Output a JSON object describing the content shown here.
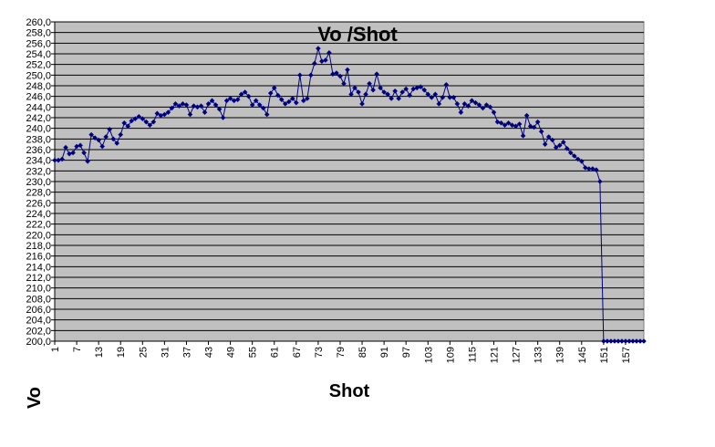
{
  "chart_data": {
    "type": "line",
    "title": "Vo /Shot",
    "xlabel": "Shot",
    "ylabel": "Vo",
    "ylim": [
      200,
      260
    ],
    "y_tick_step": 2,
    "y_tick_format": "comma-1-decimal",
    "xlim": [
      1,
      162
    ],
    "x_tick_labels": [
      "1",
      "7",
      "13",
      "19",
      "25",
      "31",
      "37",
      "43",
      "49",
      "55",
      "61",
      "67",
      "73",
      "79",
      "85",
      "91",
      "97",
      "103",
      "109",
      "115",
      "121",
      "127",
      "133",
      "139",
      "145",
      "151",
      "157"
    ],
    "grid": "horizontal",
    "plot_background": "#c0c0c0",
    "series_color": "#000080",
    "marker": "diamond",
    "series": [
      {
        "values": [
          234.0,
          234.0,
          234.2,
          236.4,
          235.2,
          235.4,
          236.6,
          236.8,
          235.4,
          233.8,
          238.8,
          238.2,
          237.8,
          236.6,
          238.4,
          239.8,
          238.0,
          237.2,
          238.8,
          241.0,
          240.4,
          241.4,
          241.8,
          242.2,
          241.8,
          241.2,
          240.6,
          241.2,
          242.8,
          242.4,
          242.6,
          243.0,
          243.8,
          244.6,
          244.2,
          244.6,
          244.4,
          242.6,
          244.2,
          244.0,
          244.2,
          243.0,
          244.6,
          245.2,
          244.4,
          243.6,
          242.0,
          245.2,
          245.6,
          245.2,
          245.4,
          246.4,
          246.8,
          246.0,
          244.4,
          245.2,
          244.4,
          243.8,
          242.6,
          246.6,
          247.6,
          246.2,
          245.4,
          244.6,
          245.0,
          245.6,
          244.8,
          250.0,
          245.2,
          245.6,
          250.0,
          252.2,
          255.0,
          252.6,
          252.8,
          254.2,
          250.2,
          250.4,
          249.8,
          248.4,
          251.0,
          246.4,
          247.6,
          246.8,
          244.6,
          246.4,
          248.4,
          247.2,
          250.2,
          247.6,
          246.8,
          246.4,
          245.6,
          247.0,
          245.6,
          246.8,
          247.4,
          246.2,
          247.4,
          247.6,
          247.8,
          247.2,
          246.4,
          245.8,
          246.4,
          244.6,
          245.8,
          248.2,
          245.8,
          245.8,
          244.6,
          243.0,
          244.6,
          244.2,
          245.2,
          244.8,
          244.4,
          243.8,
          244.4,
          244.0,
          243.0,
          241.2,
          241.0,
          240.6,
          241.0,
          240.6,
          240.4,
          240.8,
          238.6,
          242.4,
          240.4,
          240.2,
          241.2,
          239.4,
          237.0,
          238.4,
          237.8,
          236.4,
          236.8,
          237.4,
          236.2,
          235.4,
          234.8,
          234.2,
          233.8,
          232.6,
          232.4,
          232.4,
          232.2,
          230.0,
          200.0,
          200.0,
          200.0,
          200.0,
          200.0,
          200.0,
          200.0,
          200.0,
          200.0,
          200.0,
          200.0,
          200.0
        ]
      }
    ]
  }
}
